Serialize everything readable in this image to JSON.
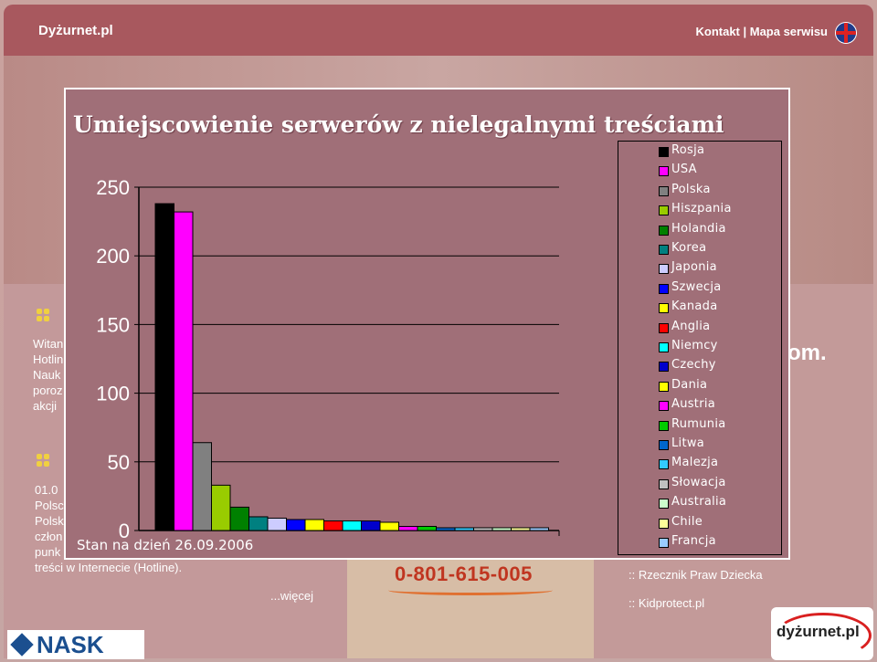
{
  "site": {
    "name": "Dyżurnet.pl",
    "top_links": "Kontakt | Mapa serwisu",
    "bg_text_left": "Witan\nHotlin\nNauk\nporoz\nakcji",
    "bg_news": "01.0\nPolsc\nPolsk\nczłon\npunk\ntreści w Internecie (Hotline).",
    "more_link": "...więcej",
    "phone": "0-801-615-005",
    "right_link_1": ":: Rzecznik Praw Dziecka",
    "right_link_2": ":: Kidprotect.pl",
    "bg_snippet": "om.",
    "nask_logo": "NASK",
    "dyzurnet_logo": "dyżurnet.pl"
  },
  "chart_data": {
    "type": "bar",
    "title": "Umiejscowienie serwerów z nielegalnymi treściami",
    "footnote": "Stan na dzień 26.09.2006",
    "ylim": [
      0,
      250
    ],
    "yticks": [
      "0",
      "50",
      "100",
      "150",
      "200",
      "250"
    ],
    "grid": true,
    "legend_position": "right",
    "series": [
      {
        "name": "Rosja",
        "value": 238,
        "color": "#000000"
      },
      {
        "name": "USA",
        "value": 232,
        "color": "#ff00ff"
      },
      {
        "name": "Polska",
        "value": 64,
        "color": "#808080"
      },
      {
        "name": "Hiszpania",
        "value": 33,
        "color": "#99cc00"
      },
      {
        "name": "Holandia",
        "value": 17,
        "color": "#008000"
      },
      {
        "name": "Korea",
        "value": 10,
        "color": "#008080"
      },
      {
        "name": "Japonia",
        "value": 9,
        "color": "#ccccff"
      },
      {
        "name": "Szwecja",
        "value": 8,
        "color": "#0000ff"
      },
      {
        "name": "Kanada",
        "value": 8,
        "color": "#ffff00"
      },
      {
        "name": "Anglia",
        "value": 7,
        "color": "#ff0000"
      },
      {
        "name": "Niemcy",
        "value": 7,
        "color": "#00ffff"
      },
      {
        "name": "Czechy",
        "value": 7,
        "color": "#0000cc"
      },
      {
        "name": "Dania",
        "value": 6,
        "color": "#ffff00"
      },
      {
        "name": "Austria",
        "value": 3,
        "color": "#ff00ff"
      },
      {
        "name": "Rumunia",
        "value": 3,
        "color": "#00cc00"
      },
      {
        "name": "Litwa",
        "value": 2,
        "color": "#0066cc"
      },
      {
        "name": "Malezja",
        "value": 2,
        "color": "#33ccff"
      },
      {
        "name": "Słowacja",
        "value": 2,
        "color": "#c0c0c0"
      },
      {
        "name": "Australia",
        "value": 2,
        "color": "#ccffcc"
      },
      {
        "name": "Chile",
        "value": 2,
        "color": "#ffff99"
      },
      {
        "name": "Francja",
        "value": 2,
        "color": "#99ccff"
      }
    ]
  }
}
